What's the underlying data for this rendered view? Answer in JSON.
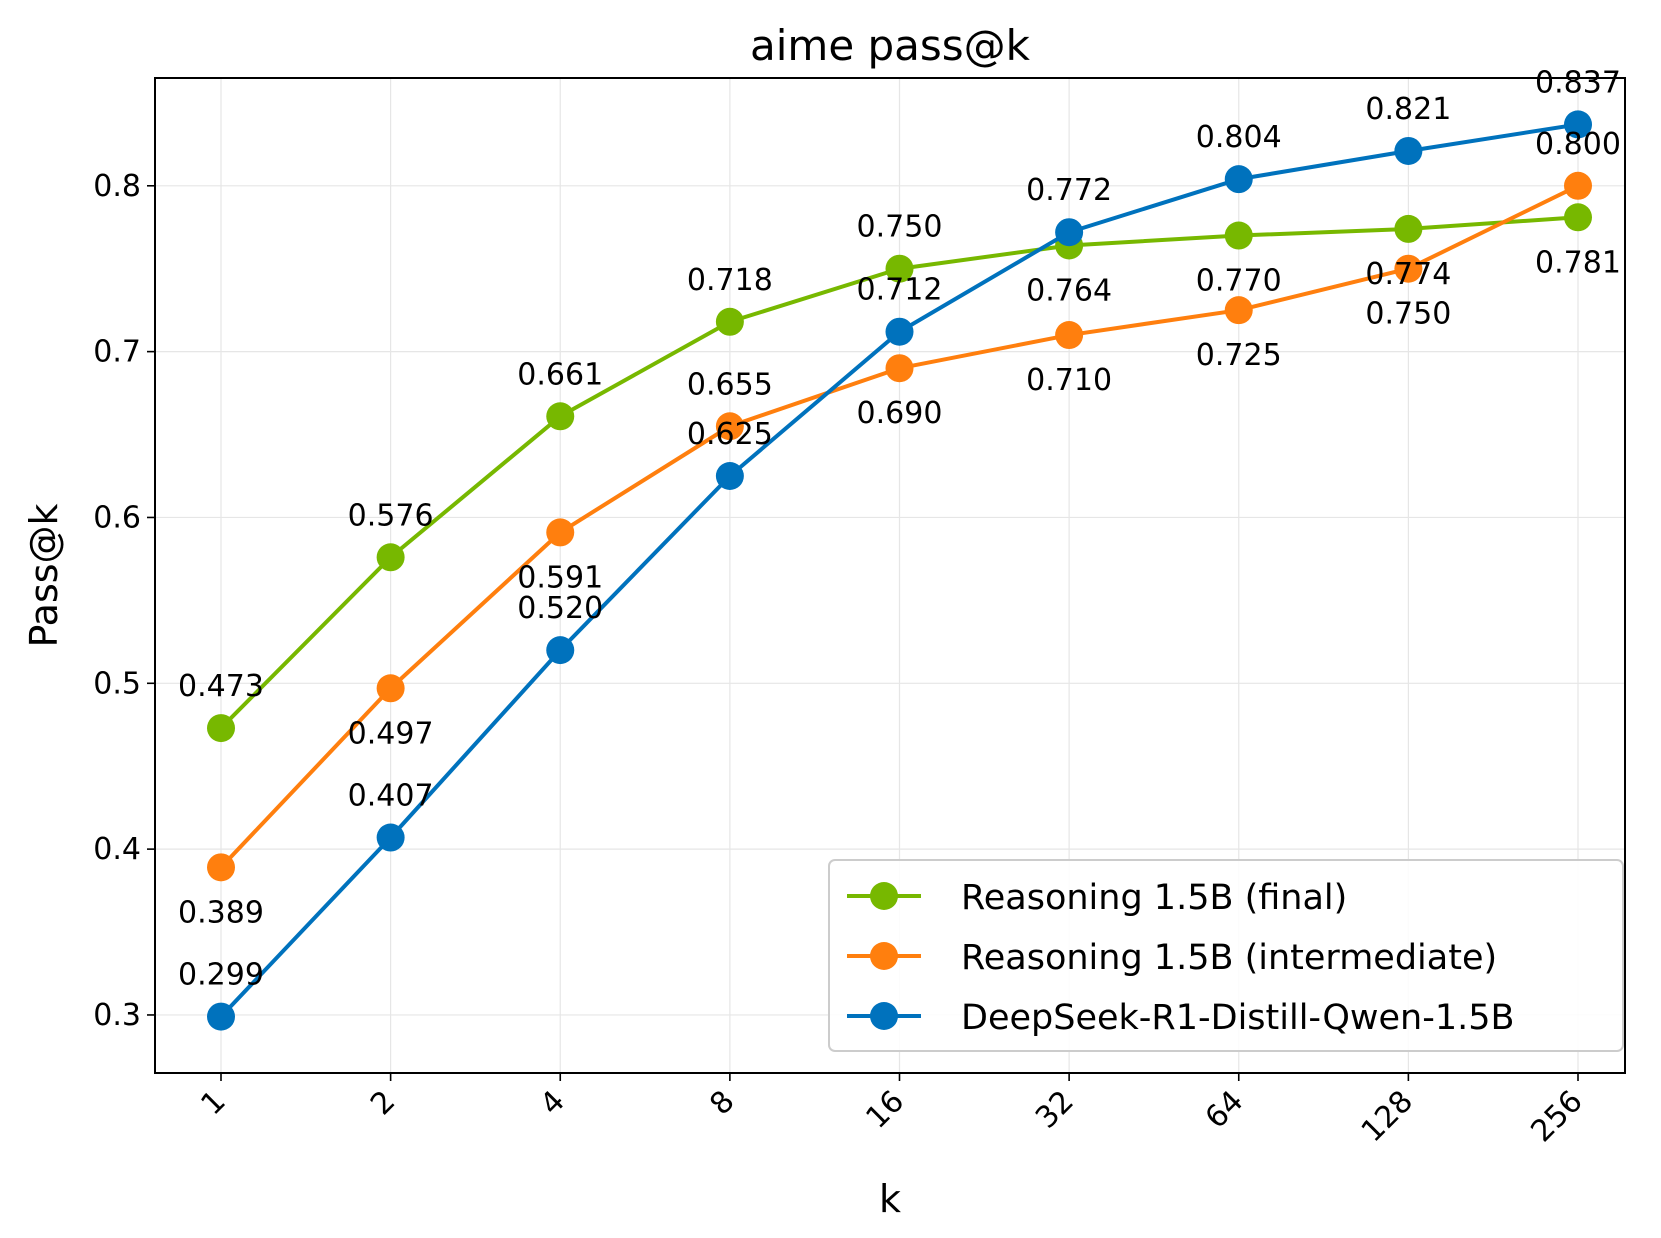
{
  "chart_data": {
    "type": "line",
    "title": "aime pass@k",
    "xlabel": "k",
    "ylabel": "Pass@k",
    "categories": [
      "1",
      "2",
      "4",
      "8",
      "16",
      "32",
      "64",
      "128",
      "256"
    ],
    "yticks": [
      "0.3",
      "0.4",
      "0.5",
      "0.6",
      "0.7",
      "0.8"
    ],
    "ylim": [
      0.265,
      0.865
    ],
    "grid": true,
    "legend_position": "bottom-right",
    "series": [
      {
        "name": "Reasoning 1.5B (final)",
        "color": "#77b800",
        "values": [
          0.473,
          0.576,
          0.661,
          0.718,
          0.75,
          0.764,
          0.77,
          0.774,
          0.781
        ],
        "labels": [
          "0.473",
          "0.576",
          "0.661",
          "0.718",
          "0.750",
          "0.764",
          "0.770",
          "0.774",
          "0.781"
        ]
      },
      {
        "name": "Reasoning 1.5B (intermediate)",
        "color": "#ff7f0e",
        "values": [
          0.389,
          0.497,
          0.591,
          0.655,
          0.69,
          0.71,
          0.725,
          0.75,
          0.8
        ],
        "labels": [
          "0.389",
          "0.497",
          "0.591",
          "0.655",
          "0.690",
          "0.710",
          "0.725",
          "0.750",
          "0.800"
        ]
      },
      {
        "name": "DeepSeek-R1-Distill-Qwen-1.5B",
        "color": "#0072bd",
        "values": [
          0.299,
          0.407,
          0.52,
          0.625,
          0.712,
          0.772,
          0.804,
          0.821,
          0.837
        ],
        "labels": [
          "0.299",
          "0.407",
          "0.520",
          "0.625",
          "0.712",
          "0.772",
          "0.804",
          "0.821",
          "0.837"
        ]
      }
    ]
  }
}
